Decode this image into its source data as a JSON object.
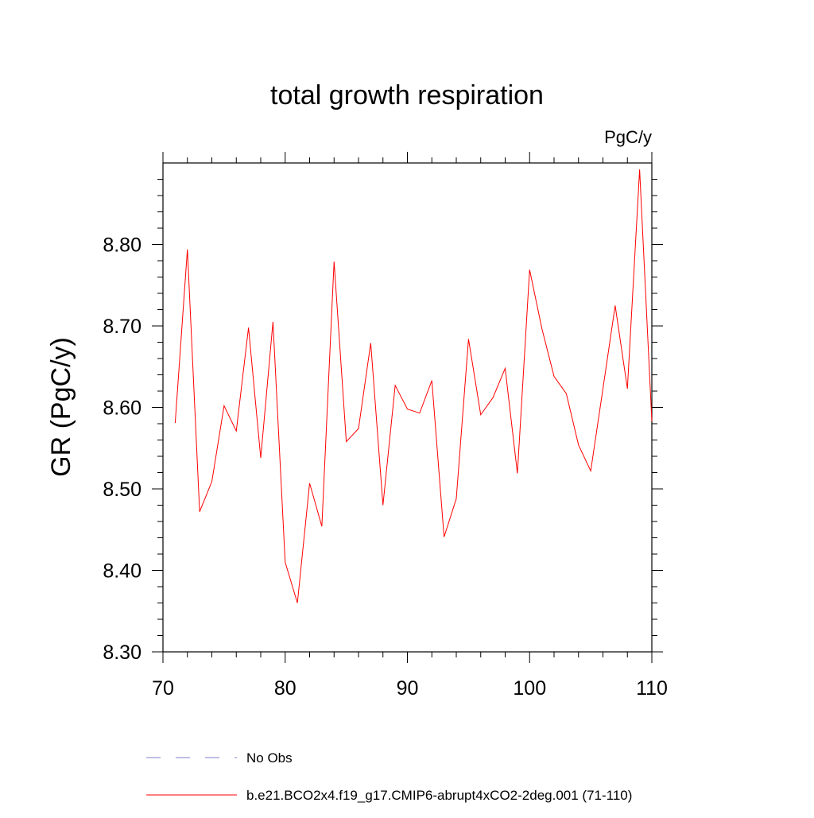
{
  "chart_data": {
    "type": "line",
    "title": "total growth respiration",
    "units_label": "PgC/y",
    "xlabel": "",
    "ylabel": "GR  (PgC/y)",
    "xlim": [
      70,
      110
    ],
    "ylim": [
      8.3,
      8.9
    ],
    "x_ticks": [
      70,
      80,
      90,
      100,
      110
    ],
    "x_tick_labels": [
      "70",
      "80",
      "90",
      "100",
      "110"
    ],
    "y_ticks": [
      8.3,
      8.4,
      8.5,
      8.6,
      8.7,
      8.8
    ],
    "y_tick_labels": [
      "8.30",
      "8.40",
      "8.50",
      "8.60",
      "8.70",
      "8.80"
    ],
    "series": [
      {
        "name": "b.e21.BCO2x4.f19_g17.CMIP6-abrupt4xCO2-2deg.001 (71-110)",
        "color": "#ff0000",
        "style": "solid",
        "x": [
          71,
          72,
          73,
          74,
          75,
          76,
          77,
          78,
          79,
          80,
          81,
          82,
          83,
          84,
          85,
          86,
          87,
          88,
          89,
          90,
          91,
          92,
          93,
          94,
          95,
          96,
          97,
          98,
          99,
          100,
          101,
          102,
          103,
          104,
          105,
          106,
          107,
          108,
          109,
          110
        ],
        "values": [
          8.581,
          8.794,
          8.472,
          8.509,
          8.602,
          8.571,
          8.698,
          8.538,
          8.705,
          8.41,
          8.36,
          8.507,
          8.454,
          8.779,
          8.558,
          8.574,
          8.679,
          8.48,
          8.627,
          8.598,
          8.593,
          8.633,
          8.441,
          8.488,
          8.684,
          8.591,
          8.612,
          8.648,
          8.519,
          8.769,
          8.697,
          8.638,
          8.617,
          8.554,
          8.522,
          8.623,
          8.725,
          8.623,
          8.892,
          8.583
        ]
      }
    ],
    "legend": [
      {
        "label": "No Obs",
        "color": "#7f7fc8",
        "style": "dashed"
      },
      {
        "label": "b.e21.BCO2x4.f19_g17.CMIP6-abrupt4xCO2-2deg.001 (71-110)",
        "color": "#ff0000",
        "style": "solid"
      }
    ],
    "legend_position": "bottom"
  }
}
